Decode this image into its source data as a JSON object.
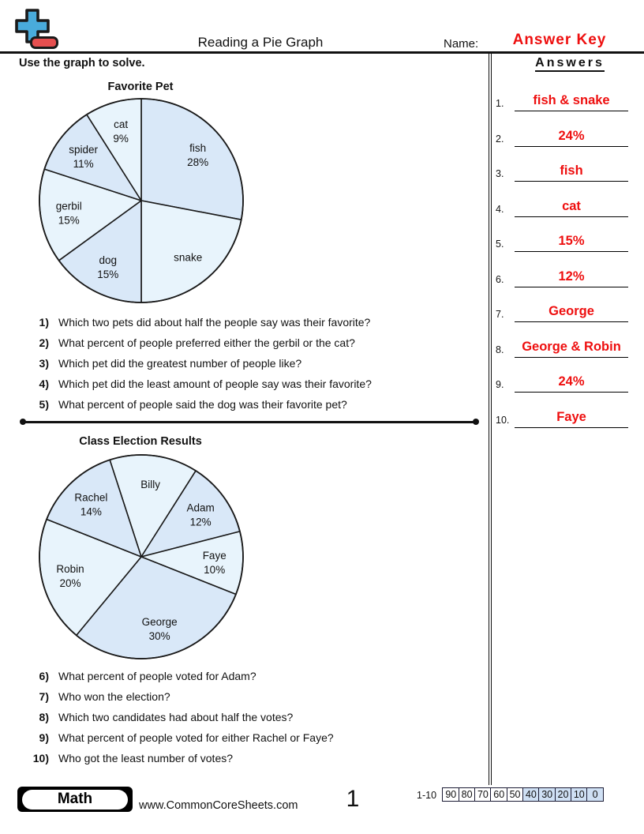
{
  "header": {
    "title": "Reading a Pie Graph",
    "name_label": "Name:",
    "name_value": "Answer Key",
    "instruction": "Use the graph to solve."
  },
  "answers_panel": {
    "title": "Answers",
    "items": [
      {
        "num": "1.",
        "answer": "fish & snake"
      },
      {
        "num": "2.",
        "answer": "24%"
      },
      {
        "num": "3.",
        "answer": "fish"
      },
      {
        "num": "4.",
        "answer": "cat"
      },
      {
        "num": "5.",
        "answer": "15%"
      },
      {
        "num": "6.",
        "answer": "12%"
      },
      {
        "num": "7.",
        "answer": "George"
      },
      {
        "num": "8.",
        "answer": "George & Robin"
      },
      {
        "num": "9.",
        "answer": "24%"
      },
      {
        "num": "10.",
        "answer": "Faye"
      }
    ]
  },
  "chart_data": [
    {
      "type": "pie",
      "title": "Favorite Pet",
      "start_angle": 0,
      "slices": [
        {
          "label": "fish",
          "value": 28,
          "pct_label": "28%",
          "color": "#d9e8f8"
        },
        {
          "label": "snake",
          "value": 22,
          "pct_label": "",
          "color": "#e8f4fc"
        },
        {
          "label": "dog",
          "value": 15,
          "pct_label": "15%",
          "color": "#d9e8f8"
        },
        {
          "label": "gerbil",
          "value": 15,
          "pct_label": "15%",
          "color": "#e8f4fc"
        },
        {
          "label": "spider",
          "value": 11,
          "pct_label": "11%",
          "color": "#d9e8f8"
        },
        {
          "label": "cat",
          "value": 9,
          "pct_label": "9%",
          "color": "#e8f4fc"
        }
      ]
    },
    {
      "type": "pie",
      "title": "Class Election Results",
      "start_angle": -18,
      "slices": [
        {
          "label": "Billy",
          "value": 14,
          "pct_label": "",
          "color": "#e8f4fc"
        },
        {
          "label": "Adam",
          "value": 12,
          "pct_label": "12%",
          "color": "#d9e8f8"
        },
        {
          "label": "Faye",
          "value": 10,
          "pct_label": "10%",
          "color": "#e8f4fc"
        },
        {
          "label": "George",
          "value": 30,
          "pct_label": "30%",
          "color": "#d9e8f8"
        },
        {
          "label": "Robin",
          "value": 20,
          "pct_label": "20%",
          "color": "#e8f4fc"
        },
        {
          "label": "Rachel",
          "value": 14,
          "pct_label": "14%",
          "color": "#d9e8f8"
        }
      ]
    }
  ],
  "questions": {
    "set1": [
      {
        "num": "1)",
        "text": "Which two pets did about half the people say was their favorite?"
      },
      {
        "num": "2)",
        "text": "What percent of people preferred either the gerbil or the cat?"
      },
      {
        "num": "3)",
        "text": "Which pet did the greatest number of people like?"
      },
      {
        "num": "4)",
        "text": "Which pet did the least amount of people say was their favorite?"
      },
      {
        "num": "5)",
        "text": "What percent of people said the dog was their favorite pet?"
      }
    ],
    "set2": [
      {
        "num": "6)",
        "text": "What percent of people voted for Adam?"
      },
      {
        "num": "7)",
        "text": "Who won the election?"
      },
      {
        "num": "8)",
        "text": "Which two candidates had about half the votes?"
      },
      {
        "num": "9)",
        "text": "What percent of people voted for either Rachel or Faye?"
      },
      {
        "num": "10)",
        "text": "Who got the least number of votes?"
      }
    ]
  },
  "footer": {
    "subject": "Math",
    "website": "www.CommonCoreSheets.com",
    "page_number": "1",
    "score_label": "1-10",
    "scores": [
      "90",
      "80",
      "70",
      "60",
      "50",
      "40",
      "30",
      "20",
      "10",
      "0"
    ],
    "highlighted_scores": [
      "40",
      "30",
      "20",
      "10",
      "0"
    ],
    "highlight_color": "#cfe0f4"
  },
  "colors": {
    "accent_red": "#ee0f0f",
    "pie_medium_blue": "#d9e8f8",
    "pie_light_blue": "#e8f4fc",
    "logo_blue": "#49abdb",
    "logo_red": "#e64f4f"
  }
}
